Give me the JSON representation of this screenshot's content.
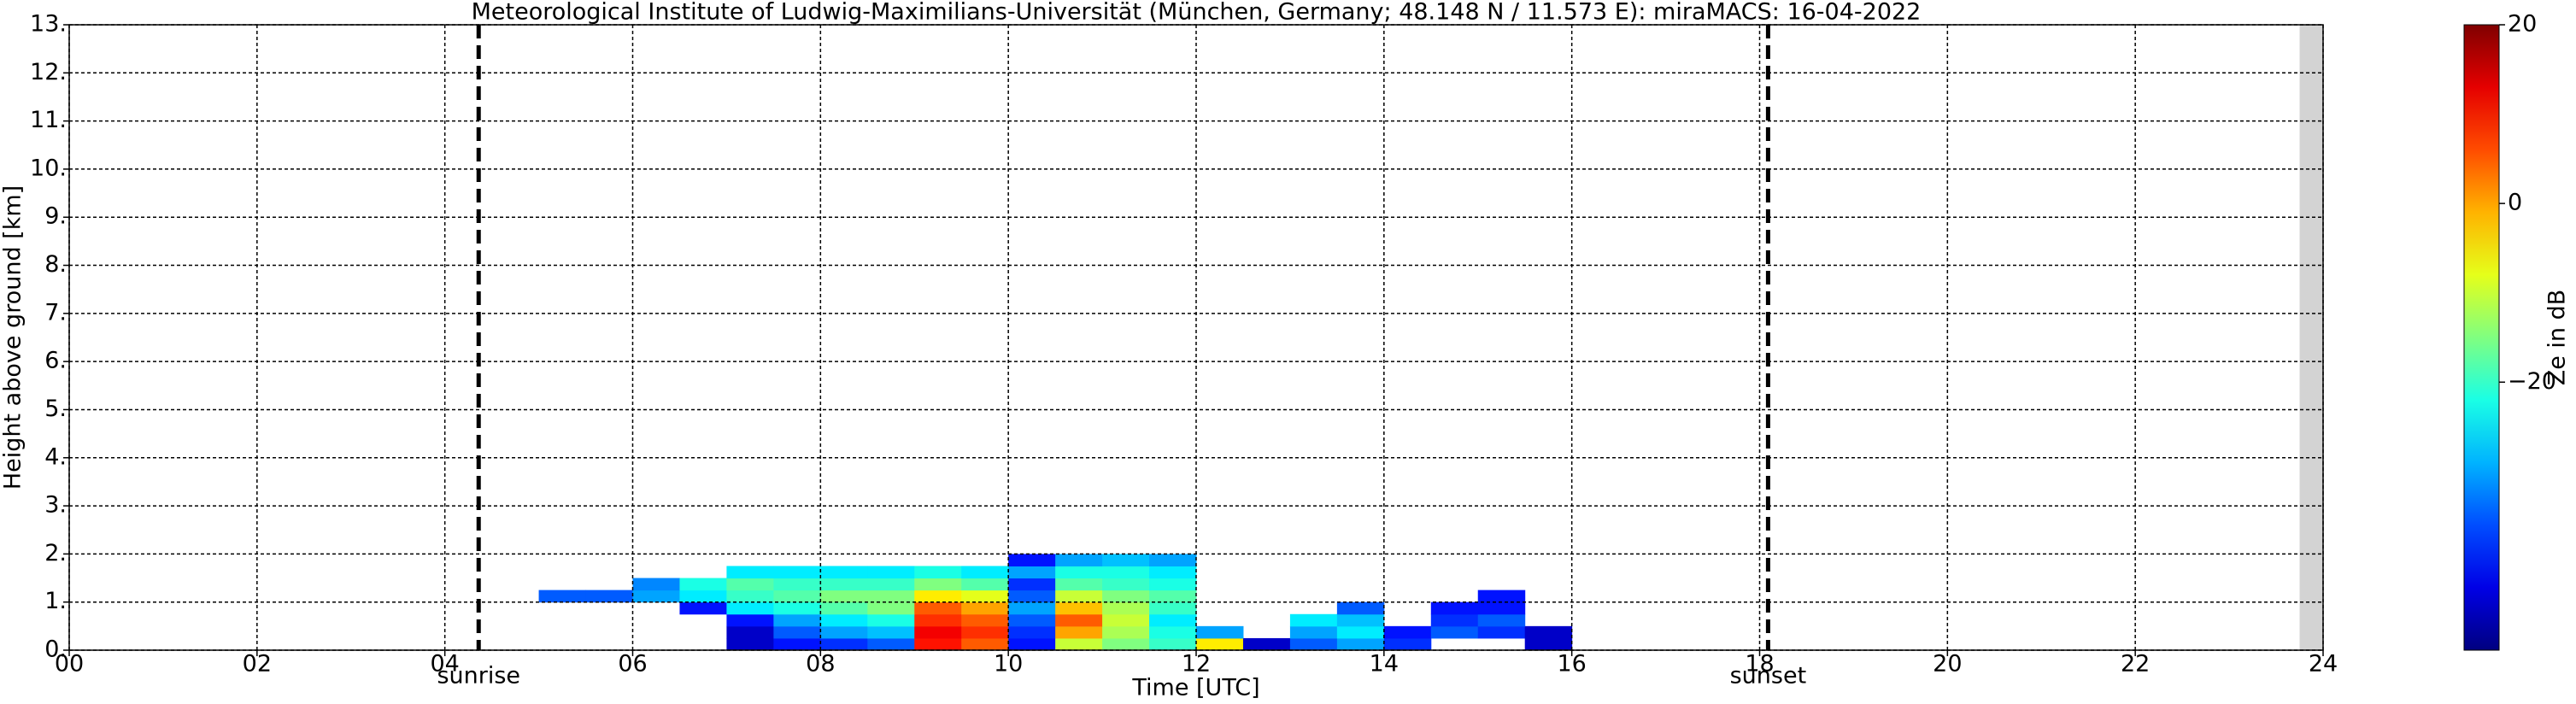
{
  "chart_data": {
    "type": "heatmap",
    "title": "Meteorological Institute of Ludwig-Maximilians-Universität (München, Germany; 48.148 N / 11.573 E):    miraMACS: 16-04-2022",
    "xlabel": "Time [UTC]",
    "ylabel": "Height above ground [km]",
    "colorbar_label": "Ze in dB",
    "colormap": "jet",
    "grid": true,
    "xlim": [
      0,
      24
    ],
    "ylim": [
      0,
      13
    ],
    "clim": [
      -50,
      20
    ],
    "xticks": [
      {
        "value": 0,
        "label": "00"
      },
      {
        "value": 2,
        "label": "02"
      },
      {
        "value": 4,
        "label": "04"
      },
      {
        "value": 6,
        "label": "06"
      },
      {
        "value": 8,
        "label": "08"
      },
      10,
      12,
      14,
      16,
      18,
      20,
      22,
      24
    ],
    "yticks": [
      {
        "value": 0,
        "label": "0."
      },
      {
        "value": 1,
        "label": "1."
      },
      {
        "value": 2,
        "label": "2."
      },
      {
        "value": 3,
        "label": "3."
      },
      {
        "value": 4,
        "label": "4."
      },
      {
        "value": 5,
        "label": "5."
      },
      {
        "value": 6,
        "label": "6."
      },
      {
        "value": 7,
        "label": "7."
      },
      {
        "value": 8,
        "label": "8."
      },
      {
        "value": 9,
        "label": "9."
      },
      {
        "value": 10,
        "label": "10."
      },
      {
        "value": 11,
        "label": "11."
      },
      {
        "value": 12,
        "label": "12."
      },
      {
        "value": 13,
        "label": "13."
      }
    ],
    "cticks": [
      20,
      0,
      {
        "value": -20,
        "label": "−20"
      }
    ],
    "annotations": [
      {
        "text": "sunrise",
        "x": 4.36
      },
      {
        "text": "sunset",
        "x": 18.09
      }
    ],
    "no_data_span": [
      23.75,
      24
    ],
    "x": [
      5.25,
      5.75,
      6.25,
      6.75,
      7.25,
      7.75,
      8.25,
      8.75,
      9.25,
      9.75,
      10.25,
      10.75,
      11.25,
      11.75,
      12.25,
      12.75,
      13.25,
      13.75,
      14.25,
      14.75,
      15.25,
      15.75
    ],
    "y": [
      0.125,
      0.375,
      0.625,
      0.875,
      1.125,
      1.375,
      1.625,
      1.875
    ],
    "z": [
      [
        null,
        null,
        null,
        null,
        -45,
        -40,
        -38,
        -35,
        10,
        5,
        -40,
        -10,
        -15,
        -20,
        -5,
        -45,
        -35,
        -30,
        -38,
        null,
        null,
        -45
      ],
      [
        null,
        null,
        null,
        null,
        -45,
        -35,
        -30,
        -28,
        12,
        8,
        -38,
        0,
        -12,
        -22,
        -30,
        null,
        -30,
        -25,
        -40,
        -35,
        -38,
        -45
      ],
      [
        null,
        null,
        null,
        null,
        -40,
        -30,
        -25,
        -22,
        8,
        5,
        -35,
        5,
        -10,
        -25,
        null,
        null,
        -25,
        -28,
        null,
        -38,
        -35,
        null
      ],
      [
        null,
        null,
        null,
        -40,
        -25,
        -22,
        -18,
        -15,
        5,
        0,
        -30,
        -2,
        -12,
        -20,
        null,
        null,
        null,
        -35,
        null,
        -40,
        -40,
        null
      ],
      [
        -35,
        -35,
        -30,
        -25,
        -20,
        -18,
        -15,
        -15,
        -5,
        -8,
        -35,
        -10,
        -15,
        -18,
        null,
        null,
        null,
        null,
        null,
        null,
        -40,
        null
      ],
      [
        null,
        null,
        -32,
        -22,
        -18,
        -20,
        -20,
        -20,
        -15,
        -18,
        -38,
        -18,
        -20,
        -22,
        null,
        null,
        null,
        null,
        null,
        null,
        null,
        null
      ],
      [
        null,
        null,
        null,
        null,
        -25,
        -25,
        -25,
        -25,
        -22,
        -25,
        -30,
        -22,
        -22,
        -25,
        null,
        null,
        null,
        null,
        null,
        null,
        null,
        null
      ],
      [
        null,
        null,
        null,
        null,
        null,
        null,
        null,
        null,
        null,
        null,
        -40,
        -30,
        -28,
        -30,
        null,
        null,
        null,
        null,
        null,
        null,
        null,
        null
      ]
    ]
  }
}
